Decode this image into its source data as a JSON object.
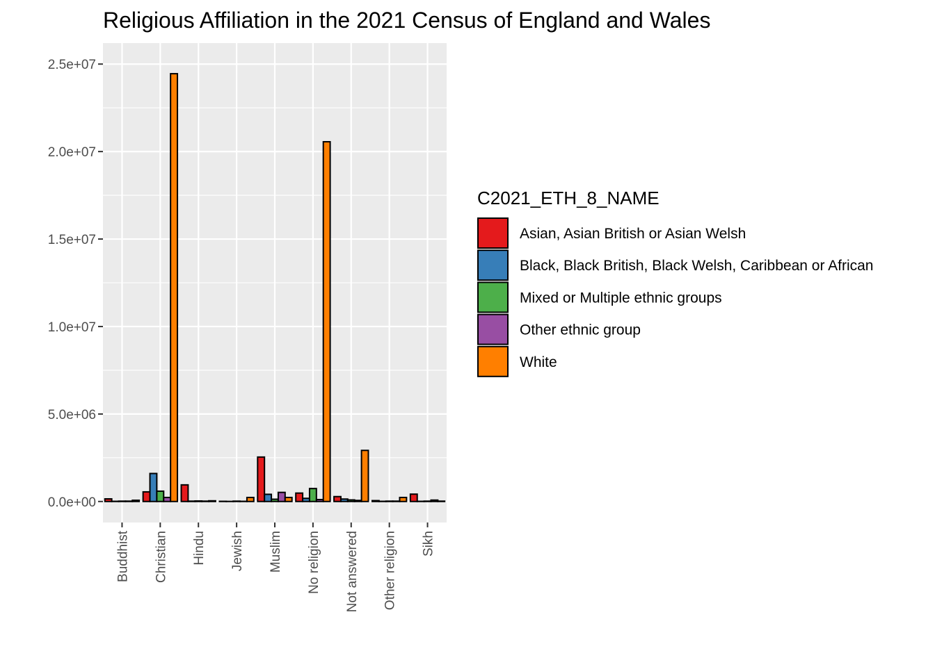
{
  "chart_data": {
    "type": "bar",
    "title": "Religious Affiliation in the 2021 Census of England and Wales",
    "xlabel": "",
    "ylabel": "",
    "categories": [
      "Buddhist",
      "Christian",
      "Hindu",
      "Jewish",
      "Muslim",
      "No religion",
      "Not answered",
      "Other religion",
      "Sikh"
    ],
    "ylim": [
      -1200000,
      26200000
    ],
    "y_ticks": [
      0,
      5000000,
      10000000,
      15000000,
      20000000,
      25000000
    ],
    "y_tick_labels": [
      "0.0e+00",
      "5.0e+06",
      "1.0e+07",
      "1.5e+07",
      "2.0e+07",
      "2.5e+07"
    ],
    "grid": true,
    "legend": {
      "title": "C2021_ETH_8_NAME",
      "position": "right"
    },
    "series": [
      {
        "name": "Asian, Asian British or Asian Welsh",
        "color": "#E41A1C",
        "values": [
          150000,
          550000,
          950000,
          10000,
          2540000,
          480000,
          280000,
          50000,
          420000
        ]
      },
      {
        "name": "Black, Black British, Black Welsh, Caribbean or African",
        "color": "#377EB8",
        "values": [
          10000,
          1600000,
          20000,
          5000,
          410000,
          180000,
          140000,
          10000,
          10000
        ]
      },
      {
        "name": "Mixed or Multiple ethnic groups",
        "color": "#4DAF4A",
        "values": [
          20000,
          590000,
          30000,
          20000,
          130000,
          740000,
          90000,
          20000,
          20000
        ]
      },
      {
        "name": "Other ethnic group",
        "color": "#984EA3",
        "values": [
          20000,
          230000,
          20000,
          10000,
          520000,
          110000,
          60000,
          20000,
          80000
        ]
      },
      {
        "name": "White",
        "color": "#FF7F00",
        "values": [
          70000,
          24450000,
          40000,
          230000,
          230000,
          20560000,
          2920000,
          230000,
          20000
        ]
      }
    ]
  }
}
